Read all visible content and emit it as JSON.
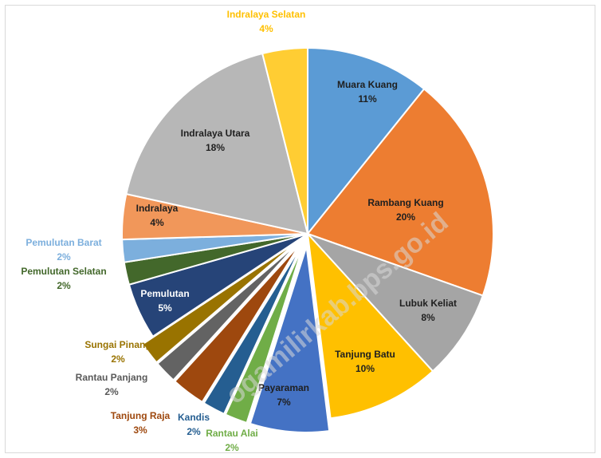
{
  "watermark": "ogamilirkab.bps.go.id",
  "chart_data": {
    "type": "pie",
    "title": "",
    "exploded": [
      "Payaraman",
      "Rantau Alai",
      "Kandis",
      "Tanjung Raja",
      "Rantau Panjang",
      "Sungai Pinang"
    ],
    "slices": [
      {
        "name": "Muara Kuang",
        "label": "11%",
        "value": 11,
        "color": "#5b9bd5"
      },
      {
        "name": "Rambang Kuang",
        "label": "20%",
        "value": 20,
        "color": "#ed7d31"
      },
      {
        "name": "Lubuk Keliat",
        "label": "8%",
        "value": 8,
        "color": "#a5a5a5"
      },
      {
        "name": "Tanjung Batu",
        "label": "10%",
        "value": 10,
        "color": "#ffc000"
      },
      {
        "name": "Payaraman",
        "label": "7%",
        "value": 7,
        "color": "#4472c4"
      },
      {
        "name": "Rantau Alai",
        "label": "2%",
        "value": 2,
        "color": "#70ad47"
      },
      {
        "name": "Kandis",
        "label": "2%",
        "value": 2,
        "color": "#255e91"
      },
      {
        "name": "Tanjung Raja",
        "label": "3%",
        "value": 3,
        "color": "#9e480e"
      },
      {
        "name": "Rantau Panjang",
        "label": "2%",
        "value": 2,
        "color": "#636363"
      },
      {
        "name": "Sungai Pinang",
        "label": "2%",
        "value": 2,
        "color": "#997300"
      },
      {
        "name": "Pemulutan",
        "label": "5%",
        "value": 5,
        "color": "#264478"
      },
      {
        "name": "Pemulutan Selatan",
        "label": "2%",
        "value": 2,
        "color": "#43682b"
      },
      {
        "name": "Pemulutan Barat",
        "label": "2%",
        "value": 2,
        "color": "#7cafdd"
      },
      {
        "name": "Indralaya",
        "label": "4%",
        "value": 4,
        "color": "#f1975a"
      },
      {
        "name": "Indralaya Utara",
        "label": "18%",
        "value": 18,
        "color": "#b7b7b7"
      },
      {
        "name": "Indralaya Selatan",
        "label": "4%",
        "value": 4,
        "color": "#ffcd33"
      }
    ]
  }
}
